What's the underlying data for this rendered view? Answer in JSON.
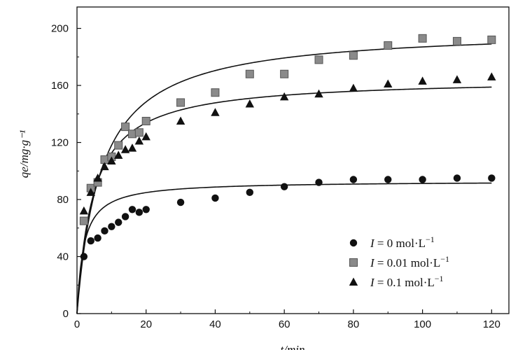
{
  "chart_data": {
    "type": "scatter",
    "xlabel": "t/min",
    "ylabel": "qe/mg·g⁻¹",
    "xlim": [
      0,
      125
    ],
    "ylim": [
      0,
      215
    ],
    "x_ticks": [
      "0",
      "20",
      "40",
      "60",
      "80",
      "100",
      "120"
    ],
    "y_ticks": [
      "0",
      "40",
      "80",
      "120",
      "160",
      "200"
    ],
    "x_tick_values": [
      0,
      20,
      40,
      60,
      80,
      100,
      120
    ],
    "y_tick_values": [
      0,
      40,
      80,
      120,
      160,
      200
    ],
    "legend_position": "bottom-right",
    "series": [
      {
        "name": "I = 0 mol·L⁻¹",
        "legend_var": "I",
        "legend_rest": " = 0 mol·L",
        "legend_sup": "−1",
        "marker": "circle",
        "color": "#111111",
        "x": [
          2,
          4,
          6,
          8,
          10,
          12,
          14,
          16,
          18,
          20,
          30,
          40,
          50,
          60,
          70,
          80,
          90,
          100,
          110,
          120
        ],
        "y": [
          40,
          51,
          53,
          58,
          61,
          64,
          68,
          73,
          71,
          73,
          78,
          81,
          85,
          89,
          92,
          94,
          94,
          94,
          95,
          95
        ],
        "fit": {
          "qe": 93,
          "k": 0.0056
        }
      },
      {
        "name": "I = 0.01 mol·L⁻¹",
        "legend_var": "I",
        "legend_rest": " = 0.01 mol·L",
        "legend_sup": "−1",
        "marker": "square",
        "color": "#8a8a8a",
        "x": [
          2,
          4,
          6,
          8,
          10,
          12,
          14,
          16,
          18,
          20,
          30,
          40,
          50,
          60,
          70,
          80,
          90,
          100,
          110,
          120
        ],
        "y": [
          65,
          88,
          92,
          108,
          110,
          118,
          131,
          126,
          127,
          135,
          148,
          155,
          168,
          168,
          178,
          181,
          188,
          193,
          191,
          192
        ],
        "fit": {
          "qe": 200,
          "k": 0.00072
        }
      },
      {
        "name": "I = 0.1 mol·L⁻¹",
        "legend_var": "I",
        "legend_rest": " = 0.1 mol·L",
        "legend_sup": "−1",
        "marker": "triangle",
        "color": "#111111",
        "x": [
          2,
          4,
          6,
          8,
          10,
          12,
          14,
          16,
          18,
          20,
          30,
          40,
          50,
          60,
          70,
          80,
          90,
          100,
          110,
          120
        ],
        "y": [
          72,
          85,
          95,
          103,
          107,
          111,
          115,
          116,
          121,
          124,
          135,
          141,
          147,
          152,
          154,
          158,
          161,
          163,
          164,
          166
        ],
        "fit": {
          "qe": 165,
          "k": 0.0013
        }
      }
    ]
  }
}
